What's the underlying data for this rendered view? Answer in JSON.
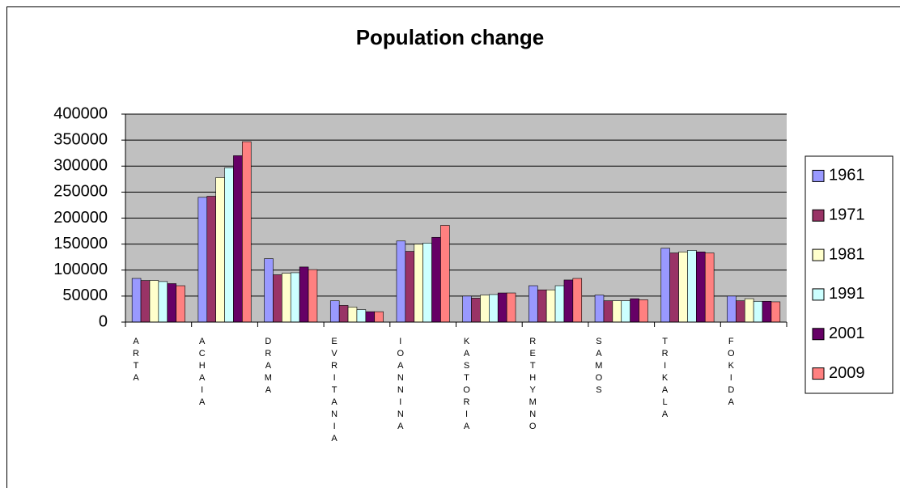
{
  "chart_data": {
    "type": "bar",
    "title": "Population change",
    "categories": [
      "ARTA",
      "ACHAIA",
      "DRAMA",
      "EVRITANIA",
      "IOANNINA",
      "KASTORIA",
      "RETHYMNO",
      "SAMOS",
      "TRIKALA",
      "FOKIDA"
    ],
    "series": [
      {
        "name": "1961",
        "color": "#9999ff",
        "values": [
          84000,
          240000,
          122000,
          41000,
          156000,
          50000,
          70000,
          52000,
          142000,
          50000
        ]
      },
      {
        "name": "1971",
        "color": "#993366",
        "values": [
          80000,
          242000,
          91000,
          32000,
          136000,
          46000,
          62000,
          41000,
          133000,
          41000
        ]
      },
      {
        "name": "1981",
        "color": "#ffffcc",
        "values": [
          80000,
          278000,
          94000,
          29000,
          150000,
          52000,
          62000,
          41000,
          135000,
          45000
        ]
      },
      {
        "name": "1991",
        "color": "#ccffff",
        "values": [
          78000,
          297000,
          95000,
          24000,
          152000,
          53000,
          70000,
          41000,
          138000,
          40000
        ]
      },
      {
        "name": "2001",
        "color": "#660066",
        "values": [
          74000,
          320000,
          106000,
          20000,
          163000,
          56000,
          81000,
          45000,
          135000,
          40000
        ]
      },
      {
        "name": "2009",
        "color": "#ff8080",
        "values": [
          70000,
          347000,
          101000,
          20000,
          186000,
          56000,
          84000,
          43000,
          133000,
          39000
        ]
      }
    ],
    "ylim": [
      0,
      400000
    ],
    "yticks": [
      0,
      50000,
      100000,
      150000,
      200000,
      250000,
      300000,
      350000,
      400000
    ],
    "grid": true,
    "plot_background": "#c0c0c0",
    "legend": "right"
  }
}
